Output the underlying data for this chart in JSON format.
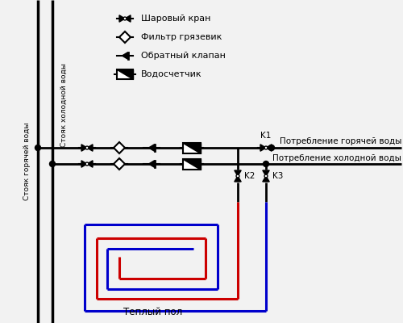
{
  "bg_color": "#f2f2f2",
  "line_color": "#000000",
  "hot_color": "#cc0000",
  "cold_color": "#0000cc",
  "text_color": "#000000",
  "legend_items": [
    "Шаровый кран",
    "Фильтр грязевик",
    "Обратный клапан",
    "Водосчетчик"
  ],
  "label_hot": "Потребление горячей воды",
  "label_cold": "Потребление холодной воды",
  "label_floor": "Теплый пол",
  "label_hot_riser": "Стояк горячей воды",
  "label_cold_riser": "Стояк холодной воды",
  "k1": "K1",
  "k2": "K2",
  "k3": "K3"
}
